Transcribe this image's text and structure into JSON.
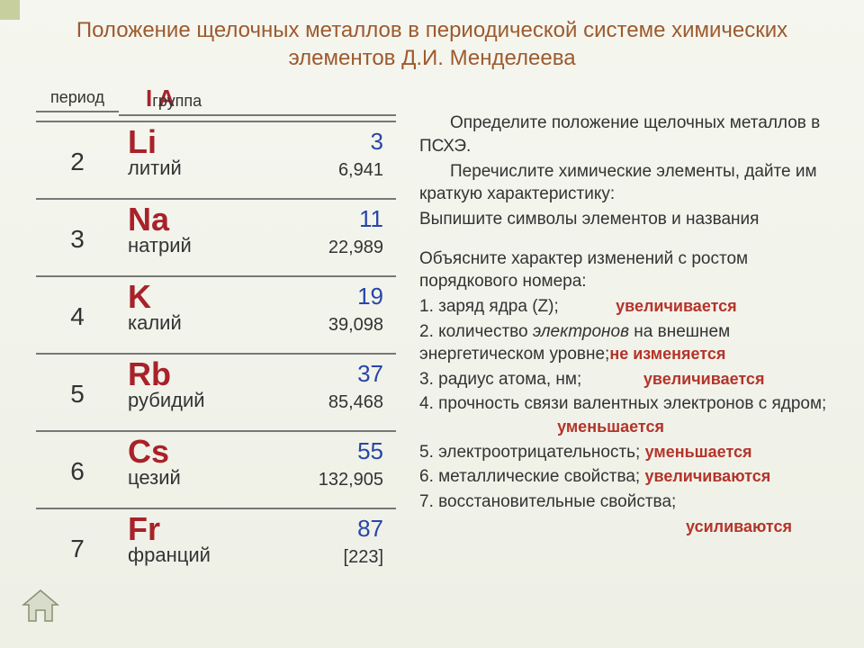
{
  "title": "Положение щелочных металлов в периодической системе химических элементов Д.И. Менделеева",
  "headers": {
    "period": "период",
    "group_symbol": "I A",
    "group_word": "группа"
  },
  "elements": [
    {
      "period": "2",
      "symbol": "Li",
      "name": "литий",
      "number": "3",
      "mass": "6,941"
    },
    {
      "period": "3",
      "symbol": "Na",
      "name": "натрий",
      "number": "11",
      "mass": "22,989"
    },
    {
      "period": "4",
      "symbol": "K",
      "name": "калий",
      "number": "19",
      "mass": "39,098"
    },
    {
      "period": "5",
      "symbol": "Rb",
      "name": "рубидий",
      "number": "37",
      "mass": "85,468"
    },
    {
      "period": "6",
      "symbol": "Cs",
      "name": "цезий",
      "number": "55",
      "mass": "132,905"
    },
    {
      "period": "7",
      "symbol": "Fr",
      "name": "франций",
      "number": "87",
      "mass": "[223]"
    }
  ],
  "task": {
    "p1": "Определите положение щелочных металлов в ПСХЭ.",
    "p2": "Перечислите химические элементы, дайте им краткую характеристику:",
    "p3": "Выпишите символы элементов и названия",
    "p4": "Объясните характер изменений с ростом порядкового номера:",
    "q1": "1. заряд ядра (Z);",
    "a1": "увеличивается",
    "q2a": "2. количество ",
    "q2em": "электронов",
    "q2b": " на внешнем энергетическом уровне;",
    "a2": "не изменяется",
    "q3": "3. радиус атома, нм;",
    "a3": "увеличивается",
    "q4": "4. прочность связи валентных электронов с ядром;",
    "a4": "уменьшается",
    "q5": "5. электроотрицательность;",
    "a5": "уменьшается",
    "q6": "6. металлические свойства;",
    "a6": "увеличиваются",
    "q7": "7. восстановительные свойства;",
    "a7": "усиливаются"
  },
  "colors": {
    "title": "#9d5a2e",
    "symbol": "#a8222a",
    "number": "#2846a8",
    "answer": "#b4342a",
    "border": "#777777",
    "accent_square": "#c7cf9f",
    "bg_top": "#f5f6ef",
    "bg_bottom": "#eef0e6"
  }
}
